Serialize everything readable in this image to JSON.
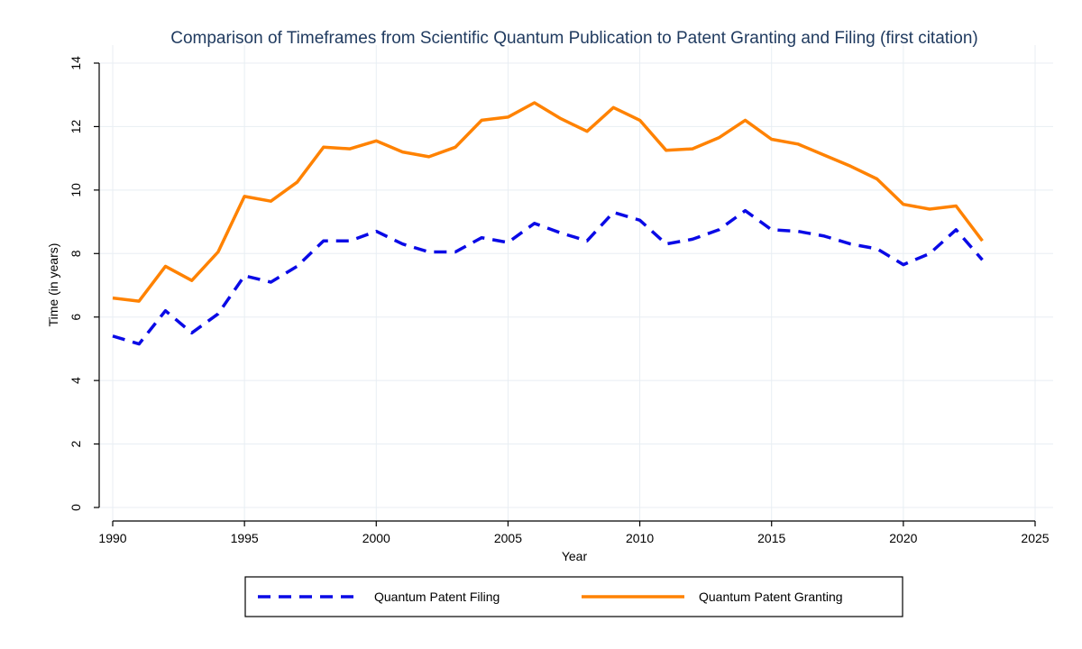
{
  "chart_data": {
    "type": "line",
    "title": "Comparison of Timeframes from Scientific Quantum Publication to Patent Granting and Filing (first citation)",
    "xlabel": "Year",
    "ylabel": "Time (in years)",
    "xlim": [
      1990,
      2025
    ],
    "ylim": [
      0,
      14
    ],
    "xticks": [
      1990,
      1995,
      2000,
      2005,
      2010,
      2015,
      2020,
      2025
    ],
    "yticks": [
      0,
      2,
      4,
      6,
      8,
      10,
      12,
      14
    ],
    "grid": true,
    "legend_position": "bottom",
    "x": [
      1990,
      1991,
      1992,
      1993,
      1994,
      1995,
      1996,
      1997,
      1998,
      1999,
      2000,
      2001,
      2002,
      2003,
      2004,
      2005,
      2006,
      2007,
      2008,
      2009,
      2010,
      2011,
      2012,
      2013,
      2014,
      2015,
      2016,
      2017,
      2018,
      2019,
      2020,
      2021,
      2022,
      2023
    ],
    "series": [
      {
        "name": "Quantum Patent Filing",
        "color": "#0a0ae6",
        "style": "dashed",
        "values": [
          5.4,
          5.15,
          6.2,
          5.5,
          6.1,
          7.3,
          7.1,
          7.6,
          8.4,
          8.4,
          8.7,
          8.3,
          8.05,
          8.05,
          8.5,
          8.35,
          8.95,
          8.65,
          8.4,
          9.3,
          9.05,
          8.3,
          8.45,
          8.75,
          9.35,
          8.75,
          8.7,
          8.55,
          8.3,
          8.15,
          7.65,
          8.0,
          8.75,
          7.8
        ]
      },
      {
        "name": "Quantum Patent Granting",
        "color": "#ff8200",
        "style": "solid",
        "values": [
          6.6,
          6.5,
          7.6,
          7.15,
          8.05,
          9.8,
          9.65,
          10.25,
          11.35,
          11.3,
          11.55,
          11.2,
          11.05,
          11.35,
          12.2,
          12.3,
          12.75,
          12.25,
          11.85,
          12.6,
          12.2,
          11.25,
          11.3,
          11.65,
          12.2,
          11.6,
          11.45,
          11.1,
          10.75,
          10.35,
          9.55,
          9.4,
          9.5,
          8.4
        ]
      }
    ]
  }
}
